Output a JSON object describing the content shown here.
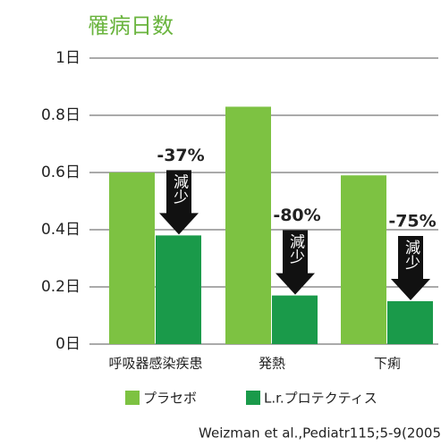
{
  "chart_data": {
    "type": "bar",
    "title": "罹病日数",
    "categories": [
      "呼吸器感染疾患",
      "発熱",
      "下痢"
    ],
    "series": [
      {
        "name": "プラセボ",
        "color": "#7dc242",
        "values": [
          0.6,
          0.83,
          0.59
        ]
      },
      {
        "name": "L.r.プロテクティス",
        "color": "#1a9a4a",
        "values": [
          0.38,
          0.17,
          0.15
        ]
      }
    ],
    "ylim": [
      0,
      1
    ],
    "yticks": [
      {
        "value": 0,
        "label": "0日"
      },
      {
        "value": 0.2,
        "label": "0.2日"
      },
      {
        "value": 0.4,
        "label": "0.4日"
      },
      {
        "value": 0.6,
        "label": "0.6日"
      },
      {
        "value": 0.8,
        "label": "0.8日"
      },
      {
        "value": 1,
        "label": "1日"
      }
    ],
    "grid": true,
    "annotations": [
      {
        "text": "-37%",
        "arrow_label": "減少"
      },
      {
        "text": "-80%",
        "arrow_label": "減少"
      },
      {
        "text": "-75%",
        "arrow_label": "減少"
      }
    ],
    "source": "Weizman et al.,Pediatr115;5-9(2005"
  }
}
